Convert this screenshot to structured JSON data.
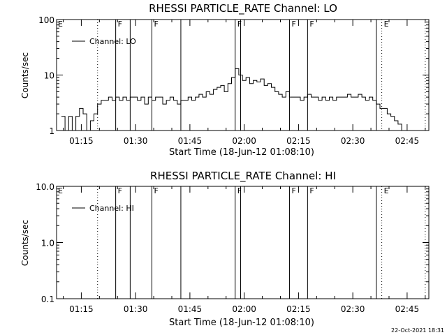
{
  "timestamp": "22-Oct-2021 18:31",
  "chart_data": [
    {
      "type": "line",
      "title": "RHESSI PARTICLE_RATE Channel: LO",
      "xlabel": "Start Time (18-Jun-12 01:08:10)",
      "ylabel": "Counts/sec",
      "yscale": "log",
      "ylim": [
        1,
        100
      ],
      "xlim_minutes": [
        68.17,
        171.0
      ],
      "xtick_labels": [
        "01:15",
        "01:30",
        "01:45",
        "02:00",
        "02:15",
        "02:30",
        "02:45"
      ],
      "xtick_minutes": [
        75,
        90,
        105,
        120,
        135,
        150,
        165
      ],
      "ytick_labels": [
        "1",
        "10",
        "100"
      ],
      "ytick_values": [
        1,
        10,
        100
      ],
      "legend": "Channel: LO",
      "legend_placement": "top-left",
      "event_lines": [
        {
          "minute": 79.5,
          "style": "dotted",
          "label": ""
        },
        {
          "minute": 84.5,
          "style": "solid",
          "label": "F"
        },
        {
          "minute": 88.5,
          "style": "solid",
          "label": ""
        },
        {
          "minute": 94.5,
          "style": "solid",
          "label": "F"
        },
        {
          "minute": 102.5,
          "style": "solid",
          "label": ""
        },
        {
          "minute": 117.5,
          "style": "solid",
          "label": "F"
        },
        {
          "minute": 119.0,
          "style": "solid",
          "label": ""
        },
        {
          "minute": 132.5,
          "style": "solid",
          "label": "F"
        },
        {
          "minute": 137.5,
          "style": "solid",
          "label": "F"
        },
        {
          "minute": 156.5,
          "style": "solid",
          "label": ""
        },
        {
          "minute": 158.0,
          "style": "dotted",
          "label": "E"
        },
        {
          "minute": 170.0,
          "style": "dotted",
          "label": ""
        }
      ],
      "corner_flag": "E",
      "series": [
        {
          "name": "Channel: LO",
          "x": [
            70,
            71,
            72,
            73,
            74,
            75,
            76,
            77,
            78,
            79,
            80,
            81,
            82,
            83,
            84,
            85,
            86,
            87,
            88,
            89,
            90,
            91,
            92,
            93,
            94,
            95,
            96,
            97,
            98,
            99,
            100,
            101,
            102,
            103,
            104,
            105,
            106,
            107,
            108,
            109,
            110,
            111,
            112,
            113,
            114,
            115,
            116,
            117,
            118,
            119,
            120,
            121,
            122,
            123,
            124,
            125,
            126,
            127,
            128,
            129,
            130,
            131,
            132,
            133,
            134,
            135,
            136,
            137,
            138,
            139,
            140,
            141,
            142,
            143,
            144,
            145,
            146,
            147,
            148,
            149,
            150,
            151,
            152,
            153,
            154,
            155,
            156,
            157,
            158,
            159,
            160,
            161,
            162,
            163,
            164
          ],
          "y": [
            1.8,
            1,
            1.8,
            1,
            1.8,
            2.5,
            2,
            1,
            1.5,
            2,
            3,
            3.5,
            3.5,
            4,
            3.5,
            4,
            3.5,
            4,
            3.5,
            4,
            4,
            3.5,
            4,
            3,
            4,
            3.5,
            4,
            4,
            3,
            3.5,
            4,
            3.5,
            3,
            3.5,
            3.5,
            4,
            3.5,
            4,
            4.5,
            4,
            5,
            4.5,
            5.5,
            6,
            6.5,
            5,
            7,
            9,
            13,
            10,
            8,
            9,
            7,
            8,
            7.5,
            8.5,
            6.5,
            7,
            6,
            5,
            4.5,
            4,
            5,
            4,
            4,
            4,
            3.5,
            4,
            4.5,
            4,
            4,
            3.5,
            4,
            3.5,
            4,
            3.5,
            4,
            4,
            4,
            4.5,
            4,
            4,
            4.5,
            4,
            3.5,
            4,
            3.5,
            3,
            2.5,
            2.5,
            2,
            1.8,
            1.5,
            1.3,
            1
          ]
        }
      ]
    },
    {
      "type": "line",
      "title": "RHESSI PARTICLE_RATE Channel: HI",
      "xlabel": "Start Time (18-Jun-12 01:08:10)",
      "ylabel": "Counts/sec",
      "yscale": "log",
      "ylim": [
        0.1,
        10
      ],
      "xlim_minutes": [
        68.17,
        171.0
      ],
      "xtick_labels": [
        "01:15",
        "01:30",
        "01:45",
        "02:00",
        "02:15",
        "02:30",
        "02:45"
      ],
      "xtick_minutes": [
        75,
        90,
        105,
        120,
        135,
        150,
        165
      ],
      "ytick_labels": [
        "0.1",
        "1.0",
        "10.0"
      ],
      "ytick_values": [
        0.1,
        1,
        10
      ],
      "legend": "Channel: HI",
      "legend_placement": "top-left",
      "event_lines": [
        {
          "minute": 79.5,
          "style": "dotted",
          "label": ""
        },
        {
          "minute": 84.5,
          "style": "solid",
          "label": "F"
        },
        {
          "minute": 88.5,
          "style": "solid",
          "label": ""
        },
        {
          "minute": 94.5,
          "style": "solid",
          "label": "F"
        },
        {
          "minute": 102.5,
          "style": "solid",
          "label": ""
        },
        {
          "minute": 117.5,
          "style": "solid",
          "label": "F"
        },
        {
          "minute": 119.0,
          "style": "solid",
          "label": ""
        },
        {
          "minute": 132.5,
          "style": "solid",
          "label": "F"
        },
        {
          "minute": 137.5,
          "style": "solid",
          "label": "F"
        },
        {
          "minute": 156.5,
          "style": "solid",
          "label": ""
        },
        {
          "minute": 158.0,
          "style": "dotted",
          "label": "E"
        },
        {
          "minute": 170.0,
          "style": "dotted",
          "label": ""
        }
      ],
      "corner_flag": "E",
      "series": [
        {
          "name": "Channel: HI",
          "x": [],
          "y": []
        }
      ]
    }
  ]
}
